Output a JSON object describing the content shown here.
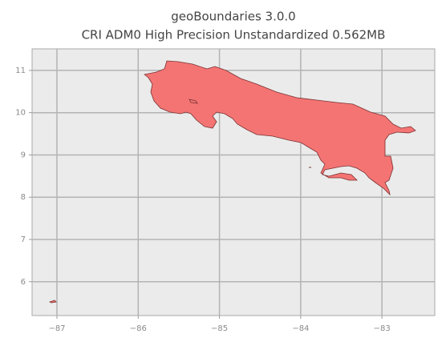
{
  "chart_data": {
    "type": "map",
    "title": "geoBoundaries 3.0.0",
    "subtitle": "CRI ADM0 High Precision Unstandardized 0.562MB",
    "xlim": [
      -87.306,
      -82.35
    ],
    "ylim": [
      5.2,
      11.51
    ],
    "xticks": [
      {
        "value": -87,
        "label": "−87"
      },
      {
        "value": -86,
        "label": "−86"
      },
      {
        "value": -85,
        "label": "−85"
      },
      {
        "value": -84,
        "label": "−84"
      },
      {
        "value": -83,
        "label": "−83"
      }
    ],
    "yticks": [
      6,
      7,
      8,
      9,
      10,
      11
    ],
    "grid": true
  }
}
